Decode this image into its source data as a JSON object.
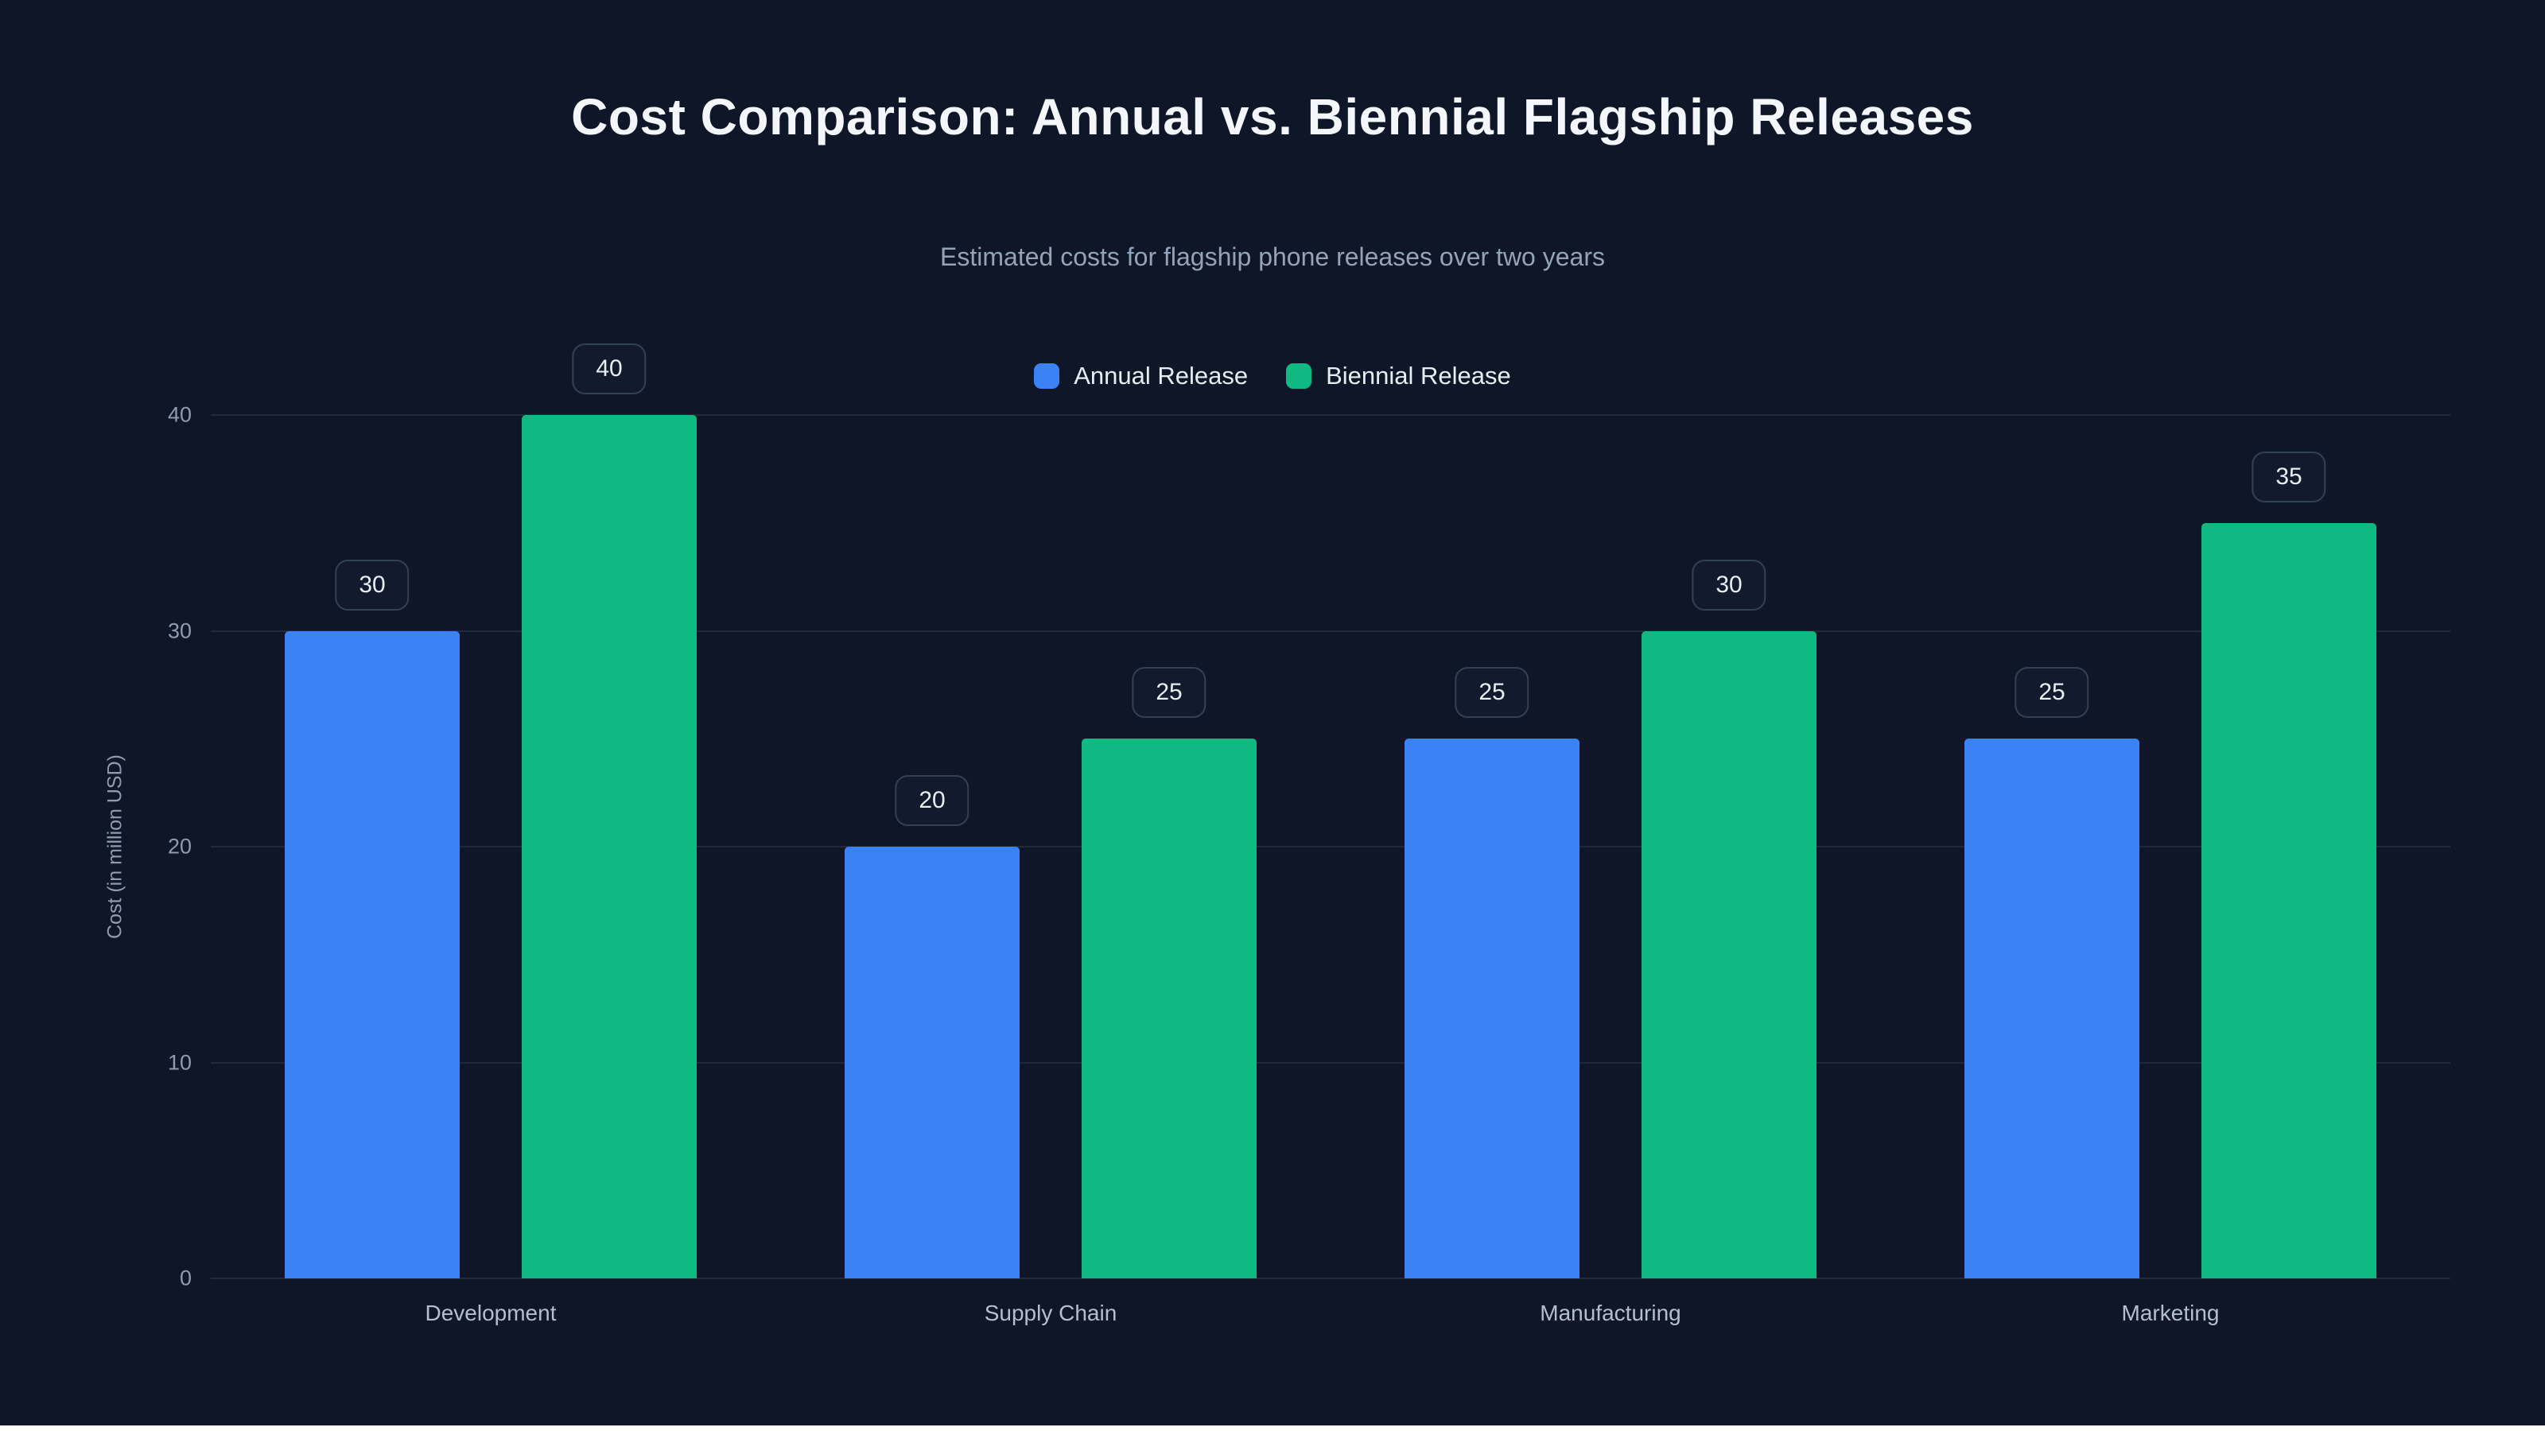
{
  "chart_data": {
    "type": "bar",
    "title": "Cost Comparison: Annual vs. Biennial Flagship Releases",
    "subtitle": "Estimated costs for flagship phone releases over two years",
    "categories": [
      "Development",
      "Supply Chain",
      "Manufacturing",
      "Marketing"
    ],
    "series": [
      {
        "name": "Annual Release",
        "color": "#3b82f6",
        "values": [
          30,
          20,
          25,
          25
        ]
      },
      {
        "name": "Biennial Release",
        "color": "#10b981",
        "values": [
          40,
          25,
          30,
          35
        ]
      }
    ],
    "xlabel": "",
    "ylabel": "Cost (in million USD)",
    "ylim": [
      0,
      40
    ],
    "yticks": [
      0,
      10,
      20,
      30,
      40
    ],
    "grid": true,
    "legend_position": "top-center",
    "value_labels": true
  },
  "colors": {
    "background": "#0e1627",
    "grid": "rgba(148,163,184,0.14)",
    "tick_label": "#8e9bb0",
    "category_label": "#b4bfcd",
    "title": "#f3f6fa",
    "subtitle": "#94a3b8",
    "legend_text": "#e8edf3",
    "pill_border": "#334155",
    "pill_bg": "#111b2d",
    "pill_text": "#e8edf4",
    "bottom_strip": "#ffffff"
  }
}
